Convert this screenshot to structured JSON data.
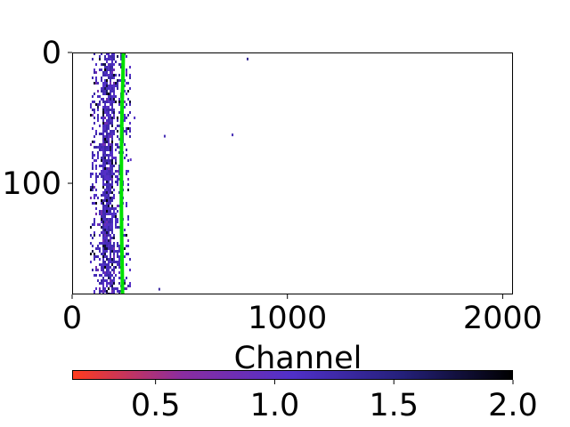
{
  "chart_data": {
    "type": "heatmap",
    "title": "",
    "xlabel": "Channel",
    "ylabel": "",
    "xlim": [
      0,
      2048
    ],
    "ylim": [
      185,
      0
    ],
    "x_ticks": [
      {
        "value": 0,
        "label": "0"
      },
      {
        "value": 1000,
        "label": "1000"
      },
      {
        "value": 2000,
        "label": "2000"
      }
    ],
    "y_ticks": [
      {
        "value": 0,
        "label": "0"
      },
      {
        "value": 100,
        "label": "100"
      }
    ],
    "grid": false,
    "trace": {
      "name": "",
      "color": "#00e000",
      "points": [
        {
          "x": 238,
          "y": 0
        },
        {
          "x": 236,
          "y": 20
        },
        {
          "x": 232,
          "y": 40
        },
        {
          "x": 230,
          "y": 60
        },
        {
          "x": 229,
          "y": 80
        },
        {
          "x": 229,
          "y": 100
        },
        {
          "x": 229,
          "y": 120
        },
        {
          "x": 230,
          "y": 140
        },
        {
          "x": 232,
          "y": 160
        },
        {
          "x": 234,
          "y": 185
        }
      ]
    },
    "outliers": [
      {
        "x": 815,
        "y": 5,
        "value": 1.4
      },
      {
        "x": 430,
        "y": 64,
        "value": 1.2
      },
      {
        "x": 745,
        "y": 63,
        "value": 1.2
      },
      {
        "x": 405,
        "y": 181,
        "value": 1.3
      },
      {
        "x": 290,
        "y": 50,
        "value": 1.1
      },
      {
        "x": 272,
        "y": 82,
        "value": 1.0
      }
    ],
    "colorbar": {
      "orientation": "horizontal",
      "range": [
        0.15,
        2.0
      ],
      "colors": [
        "#ff3c1e",
        "#8a2da0",
        "#5030c8",
        "#24207a",
        "#000000"
      ],
      "ticks": [
        {
          "value": 0.5,
          "label": "0.5"
        },
        {
          "value": 1.0,
          "label": "1.0"
        },
        {
          "value": 1.5,
          "label": "1.5"
        },
        {
          "value": 2.0,
          "label": "2.0"
        }
      ]
    }
  }
}
